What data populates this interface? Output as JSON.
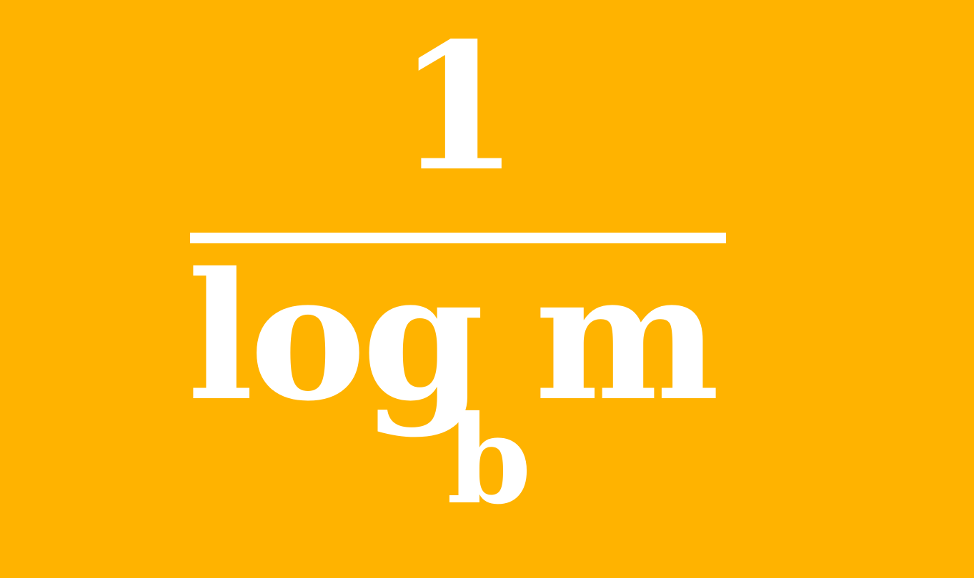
{
  "colors": {
    "background": "#FFB300",
    "foreground": "#FFFFFF"
  },
  "formula": {
    "numerator": "1",
    "denominator": {
      "function": "log",
      "base": "b",
      "argument": "m"
    }
  }
}
